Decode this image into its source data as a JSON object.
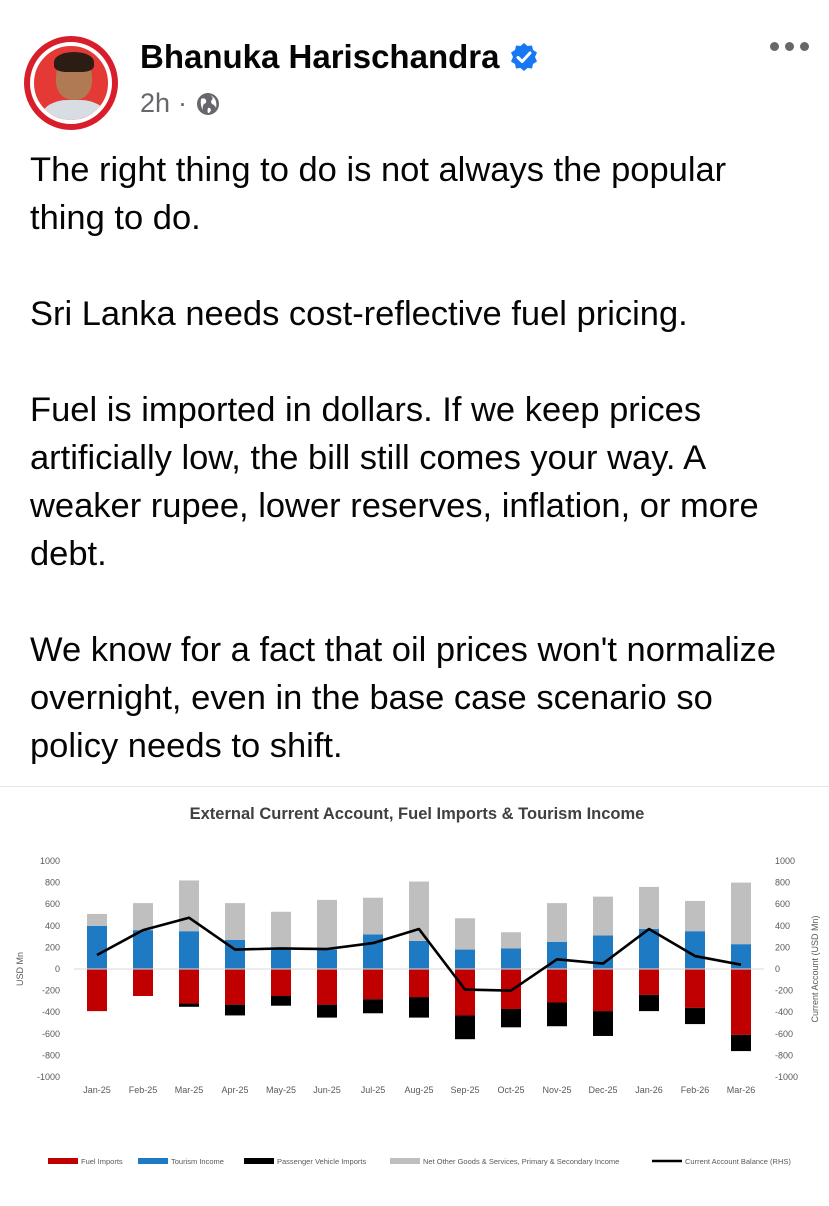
{
  "post": {
    "author": "Bhanuka Harischandra",
    "time": "2h",
    "separator": "·",
    "paragraphs": [
      "The right thing to do is not always the popular thing to do.",
      "Sri Lanka needs cost-reflective fuel pricing.",
      "Fuel is imported in dollars. If we keep prices artificially low, the bill still comes your way. A weaker rupee, lower reserves, inflation, or more debt.",
      "We know for a fact that oil prices won't normalize overnight, even in the base case scenario so policy needs to shift."
    ],
    "icons": {
      "verified": "verified-badge-icon",
      "privacy": "globe-icon",
      "menu": "more-icon"
    },
    "colors": {
      "verified": "#1877f2",
      "avatar_ring": "#d81e2a"
    }
  },
  "chart_data": {
    "type": "bar",
    "title": "External Current Account, Fuel Imports & Tourism Income",
    "ylabel": "USD Mn",
    "y2label": "Current Account (USD Mn)",
    "ylim": [
      -1000,
      1000
    ],
    "yticks": [
      1000,
      800,
      600,
      400,
      200,
      0,
      -200,
      -400,
      -600,
      -800,
      -1000
    ],
    "categories": [
      "Jan-25",
      "Feb-25",
      "Mar-25",
      "Apr-25",
      "May-25",
      "Jun-25",
      "Jul-25",
      "Aug-25",
      "Sep-25",
      "Oct-25",
      "Nov-25",
      "Dec-25",
      "Jan-26",
      "Feb-26",
      "Mar-26"
    ],
    "series": [
      {
        "name": "Fuel Imports",
        "kind": "bar",
        "color": "#c00000",
        "values": [
          -390,
          -250,
          -320,
          -330,
          -250,
          -330,
          -280,
          -260,
          -430,
          -370,
          -310,
          -390,
          -240,
          -360,
          -610
        ]
      },
      {
        "name": "Tourism Income",
        "kind": "bar",
        "color": "#1f7ac4",
        "values": [
          400,
          360,
          350,
          270,
          180,
          180,
          320,
          260,
          180,
          190,
          250,
          310,
          370,
          350,
          230
        ]
      },
      {
        "name": "Passenger Vehicle Imports",
        "kind": "bar",
        "color": "#000000",
        "values": [
          0,
          0,
          -30,
          -100,
          -90,
          -120,
          -130,
          -190,
          -220,
          -170,
          -220,
          -230,
          -150,
          -150,
          -150
        ]
      },
      {
        "name": "Net Other Goods & Services, Primary & Secondary Income",
        "kind": "bar",
        "color": "#bfbfbf",
        "values": [
          110,
          250,
          470,
          340,
          350,
          460,
          340,
          550,
          290,
          150,
          360,
          360,
          390,
          280,
          570
        ]
      },
      {
        "name": "Current Account Balance (RHS)",
        "kind": "line",
        "color": "#000000",
        "values": [
          130,
          360,
          475,
          180,
          190,
          185,
          240,
          370,
          -190,
          -200,
          90,
          50,
          370,
          120,
          40
        ]
      }
    ],
    "legend": "bottom"
  }
}
